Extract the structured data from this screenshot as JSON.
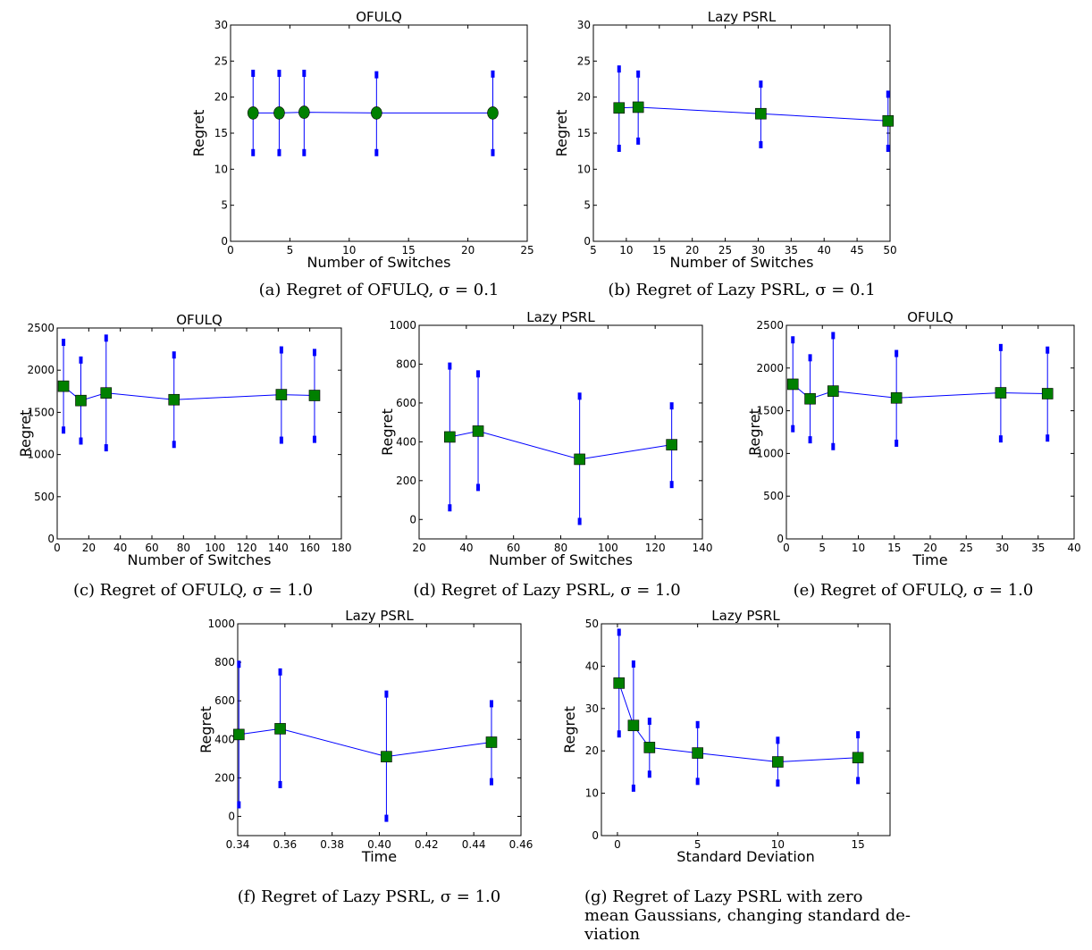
{
  "colors": {
    "line": "#0000ff",
    "marker": "#008000",
    "errorbar": "#0000ff",
    "frame": "#000000"
  },
  "chart_data": [
    {
      "id": "a",
      "type": "line",
      "marker": "circle",
      "title": "OFULQ",
      "xlabel": "Number of Switches",
      "ylabel": "Regret",
      "xlim": [
        0,
        25
      ],
      "ylim": [
        0,
        30
      ],
      "xticks": [
        0,
        5,
        10,
        15,
        20,
        25
      ],
      "yticks": [
        0,
        5,
        10,
        15,
        20,
        25,
        30
      ],
      "x": [
        1.9,
        4.1,
        6.2,
        12.3,
        22.1
      ],
      "y": [
        17.8,
        17.8,
        17.9,
        17.8,
        17.8
      ],
      "err_low": [
        12.3,
        12.3,
        12.3,
        12.3,
        12.3
      ],
      "err_high": [
        23.3,
        23.3,
        23.3,
        23.1,
        23.2
      ],
      "caption": "(a) Regret of OFULQ, σ = 0.1"
    },
    {
      "id": "b",
      "type": "line",
      "marker": "square",
      "title": "Lazy PSRL",
      "xlabel": "Number of Switches",
      "ylabel": "Regret",
      "xlim": [
        5,
        50
      ],
      "ylim": [
        0,
        30
      ],
      "xticks": [
        5,
        10,
        15,
        20,
        25,
        30,
        35,
        40,
        45,
        50
      ],
      "yticks": [
        0,
        5,
        10,
        15,
        20,
        25,
        30
      ],
      "x": [
        8.9,
        11.8,
        30.4,
        49.7
      ],
      "y": [
        18.5,
        18.6,
        17.7,
        16.7
      ],
      "err_low": [
        12.9,
        13.9,
        13.4,
        12.9
      ],
      "err_high": [
        23.9,
        23.2,
        21.8,
        20.4
      ],
      "caption": "(b) Regret of Lazy PSRL, σ = 0.1"
    },
    {
      "id": "c",
      "type": "line",
      "marker": "square",
      "title": "OFULQ",
      "xlabel": "Number of Switches",
      "ylabel": "Regret",
      "xlim": [
        0,
        180
      ],
      "ylim": [
        0,
        2500
      ],
      "xticks": [
        0,
        20,
        40,
        60,
        80,
        100,
        120,
        140,
        160,
        180
      ],
      "yticks": [
        0,
        500,
        1000,
        1500,
        2000,
        2500
      ],
      "x": [
        4,
        15,
        31,
        74,
        142,
        163
      ],
      "y": [
        1810,
        1640,
        1730,
        1650,
        1710,
        1700
      ],
      "err_low": [
        1290,
        1160,
        1080,
        1120,
        1170,
        1180
      ],
      "err_high": [
        2330,
        2120,
        2380,
        2180,
        2240,
        2210
      ],
      "caption": "(c) Regret of OFULQ, σ = 1.0"
    },
    {
      "id": "d",
      "type": "line",
      "marker": "square",
      "title": "Lazy PSRL",
      "xlabel": "Number of Switches",
      "ylabel": "Regret",
      "xlim": [
        20,
        140
      ],
      "ylim": [
        -100,
        1000
      ],
      "xticks": [
        20,
        40,
        60,
        80,
        100,
        120,
        140
      ],
      "yticks": [
        0,
        200,
        400,
        600,
        800,
        1000
      ],
      "x": [
        33,
        45,
        88,
        127
      ],
      "y": [
        425,
        455,
        310,
        385
      ],
      "err_low": [
        60,
        165,
        -10,
        180
      ],
      "err_high": [
        790,
        750,
        635,
        585
      ],
      "caption": "(d) Regret of Lazy PSRL, σ = 1.0"
    },
    {
      "id": "e",
      "type": "line",
      "marker": "square",
      "title": "OFULQ",
      "xlabel": "Time",
      "ylabel": "Regret",
      "xlim": [
        0,
        40
      ],
      "ylim": [
        0,
        2500
      ],
      "xticks": [
        0,
        5,
        10,
        15,
        20,
        25,
        30,
        35,
        40
      ],
      "yticks": [
        0,
        500,
        1000,
        1500,
        2000,
        2500
      ],
      "x": [
        0.9,
        3.3,
        6.5,
        15.3,
        29.8,
        36.3
      ],
      "y": [
        1810,
        1640,
        1730,
        1650,
        1710,
        1700
      ],
      "err_low": [
        1290,
        1160,
        1080,
        1120,
        1170,
        1180
      ],
      "err_high": [
        2330,
        2120,
        2380,
        2170,
        2240,
        2210
      ],
      "caption": "(e) Regret of OFULQ, σ = 1.0"
    },
    {
      "id": "f",
      "type": "line",
      "marker": "square",
      "title": "Lazy PSRL",
      "xlabel": "Time",
      "ylabel": "Regret",
      "xlim": [
        0.34,
        0.46
      ],
      "ylim": [
        -100,
        1000
      ],
      "xticks": [
        0.34,
        0.36,
        0.38,
        0.4,
        0.42,
        0.44,
        0.46
      ],
      "yticks": [
        0,
        200,
        400,
        600,
        800,
        1000
      ],
      "xtick_labels": [
        "0.34",
        "0.36",
        "0.38",
        "0.40",
        "0.42",
        "0.44",
        "0.46"
      ],
      "x": [
        0.3405,
        0.358,
        0.403,
        0.4475
      ],
      "y": [
        425,
        455,
        310,
        385
      ],
      "err_low": [
        60,
        165,
        -10,
        180
      ],
      "err_high": [
        790,
        750,
        635,
        585
      ],
      "caption": "(f) Regret of Lazy PSRL, σ = 1.0"
    },
    {
      "id": "g",
      "type": "line",
      "marker": "square",
      "title": "Lazy PSRL",
      "xlabel": "Standard Deviation",
      "ylabel": "Regret",
      "xlim": [
        -1,
        17
      ],
      "ylim": [
        0,
        50
      ],
      "xticks": [
        0,
        5,
        10,
        15
      ],
      "yticks": [
        0,
        10,
        20,
        30,
        40,
        50
      ],
      "x": [
        0.1,
        1,
        2,
        5,
        10,
        15
      ],
      "y": [
        36,
        26,
        20.8,
        19.5,
        17.4,
        18.4
      ],
      "err_low": [
        24,
        11.2,
        14.5,
        12.8,
        12.4,
        13
      ],
      "err_high": [
        48,
        40.5,
        27,
        26.2,
        22.5,
        23.8
      ],
      "caption_lines": [
        "(g) Regret of Lazy PSRL with zero",
        "mean Gaussians, changing standard de-",
        "viation"
      ]
    }
  ]
}
